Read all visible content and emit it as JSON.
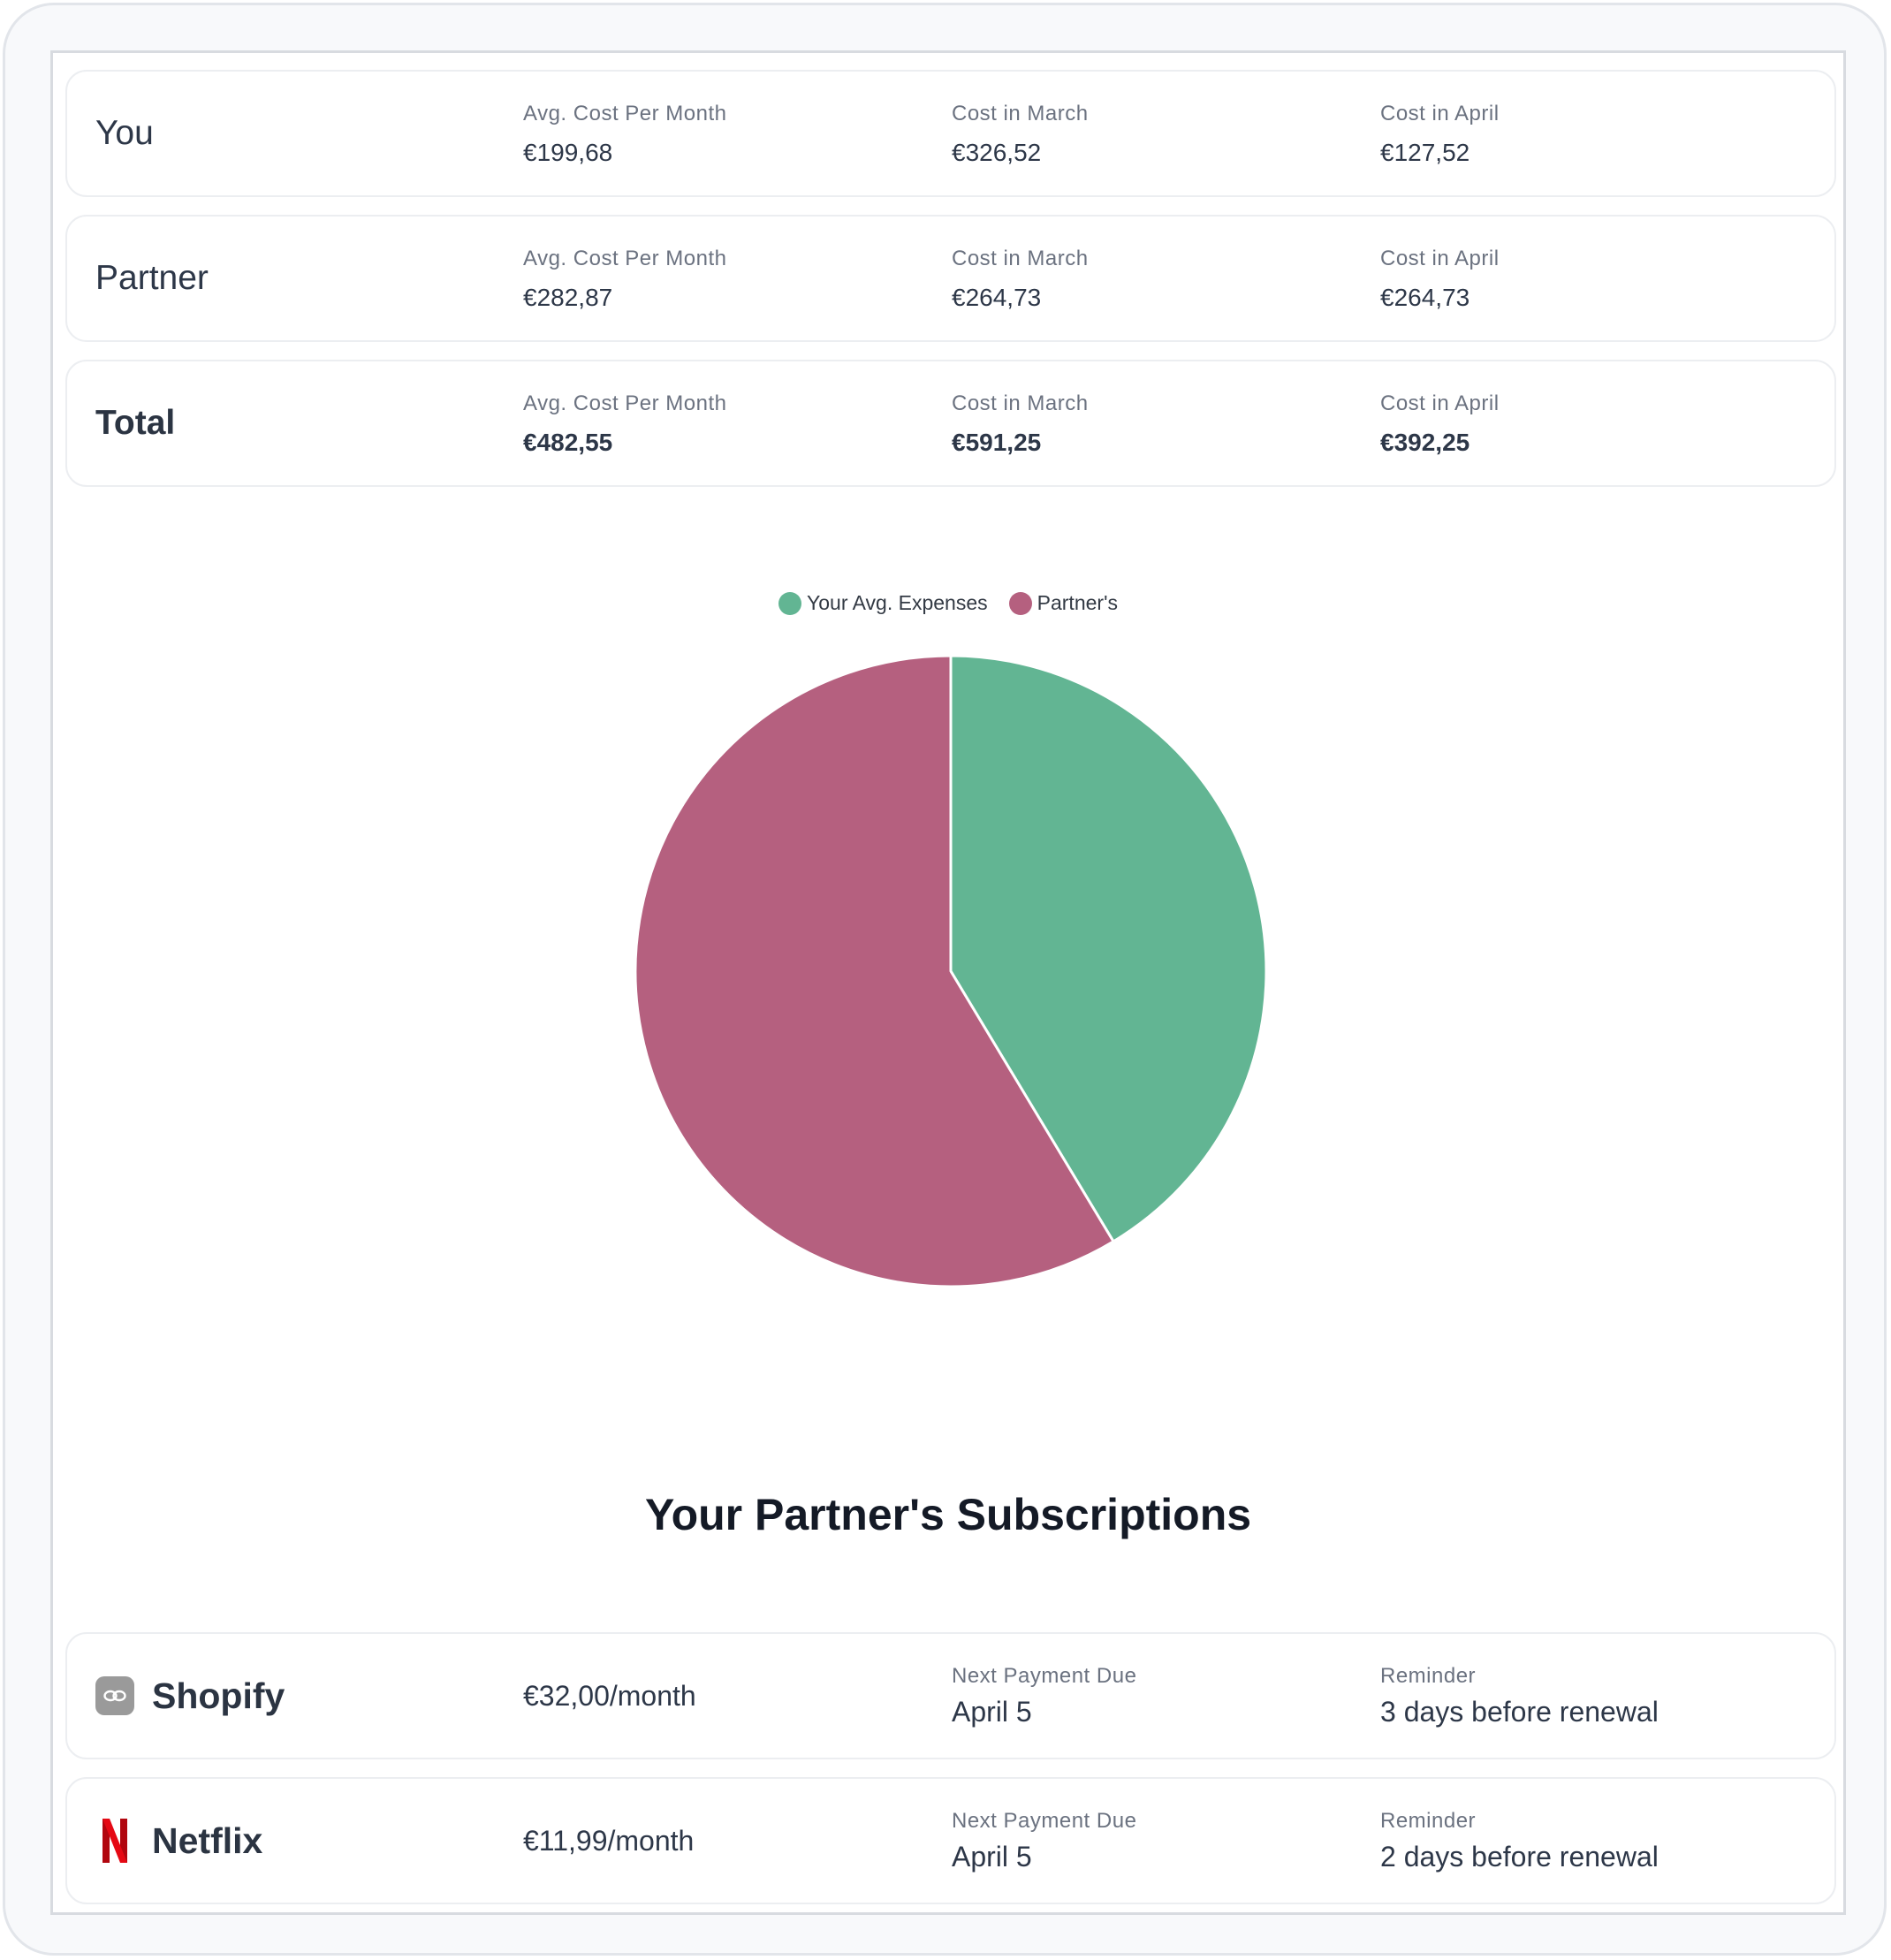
{
  "summary": {
    "rows": [
      {
        "name": "You",
        "avg_label": "Avg. Cost Per Month",
        "avg": "€199,68",
        "march_label": "Cost in March",
        "march": "€326,52",
        "april_label": "Cost in April",
        "april": "€127,52"
      },
      {
        "name": "Partner",
        "avg_label": "Avg. Cost Per Month",
        "avg": "€282,87",
        "march_label": "Cost in March",
        "march": "€264,73",
        "april_label": "Cost in April",
        "april": "€264,73"
      },
      {
        "name": "Total",
        "avg_label": "Avg. Cost Per Month",
        "avg": "€482,55",
        "march_label": "Cost in March",
        "march": "€591,25",
        "april_label": "Cost in April",
        "april": "€392,25"
      }
    ]
  },
  "chart_data": {
    "type": "pie",
    "title": "",
    "labels": [
      "Your Avg. Expenses",
      "Partner's"
    ],
    "values": [
      199.68,
      282.87
    ],
    "colors": [
      "#62b593",
      "#b5607f"
    ],
    "legend_position": "top-center"
  },
  "subscriptions": {
    "title": "Your Partner's Subscriptions",
    "items": [
      {
        "name": "Shopify",
        "icon": "shopify-icon",
        "price": "€32,00/month",
        "due_label": "Next Payment Due",
        "due": "April 5",
        "reminder_label": "Reminder",
        "reminder": "3 days before renewal"
      },
      {
        "name": "Netflix",
        "icon": "netflix-icon",
        "price": "€11,99/month",
        "due_label": "Next Payment Due",
        "due": "April 5",
        "reminder_label": "Reminder",
        "reminder": "2 days before renewal"
      }
    ]
  },
  "colors": {
    "you": "#62b593",
    "partner": "#b5607f",
    "netflix": "#d40f14"
  }
}
